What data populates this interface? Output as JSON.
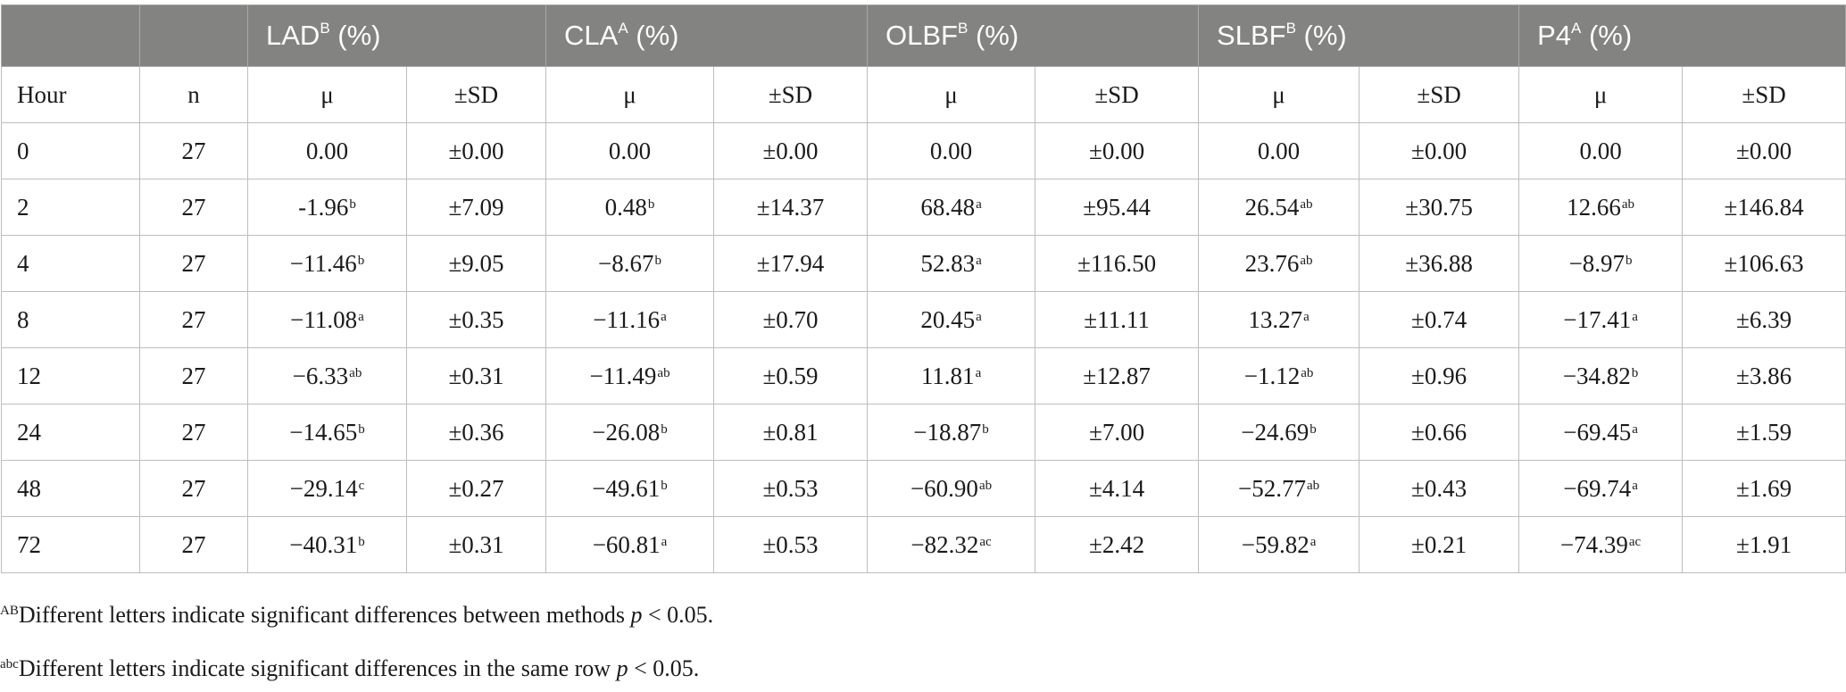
{
  "header": {
    "groups": [
      {
        "name": "LAD",
        "sup": "B",
        "unit": " (%)"
      },
      {
        "name": "CLA",
        "sup": "A",
        "unit": " (%)"
      },
      {
        "name": "OLBF",
        "sup": "B",
        "unit": " (%)"
      },
      {
        "name": "SLBF",
        "sup": "B",
        "unit": " (%)"
      },
      {
        "name": "P4",
        "sup": "A",
        "unit": " (%)"
      }
    ],
    "hour_label": "Hour",
    "n_label": "n",
    "mean_label": "μ",
    "sd_label": "±SD"
  },
  "rows": [
    {
      "hour": "0",
      "n": "27",
      "cells": [
        {
          "mean": "0.00",
          "sup": "",
          "sd": "±0.00"
        },
        {
          "mean": "0.00",
          "sup": "",
          "sd": "±0.00"
        },
        {
          "mean": "0.00",
          "sup": "",
          "sd": "±0.00"
        },
        {
          "mean": "0.00",
          "sup": "",
          "sd": "±0.00"
        },
        {
          "mean": "0.00",
          "sup": "",
          "sd": "±0.00"
        }
      ]
    },
    {
      "hour": "2",
      "n": "27",
      "cells": [
        {
          "mean": "-1.96",
          "sup": "b",
          "sd": "±7.09"
        },
        {
          "mean": "0.48",
          "sup": "b",
          "sd": "±14.37"
        },
        {
          "mean": "68.48",
          "sup": "a",
          "sd": "±95.44"
        },
        {
          "mean": "26.54",
          "sup": "ab",
          "sd": "±30.75"
        },
        {
          "mean": "12.66",
          "sup": "ab",
          "sd": "±146.84"
        }
      ]
    },
    {
      "hour": "4",
      "n": "27",
      "cells": [
        {
          "mean": "−11.46",
          "sup": "b",
          "sd": "±9.05"
        },
        {
          "mean": "−8.67",
          "sup": "b",
          "sd": "±17.94"
        },
        {
          "mean": "52.83",
          "sup": "a",
          "sd": "±116.50"
        },
        {
          "mean": "23.76",
          "sup": "ab",
          "sd": "±36.88"
        },
        {
          "mean": "−8.97",
          "sup": "b",
          "sd": "±106.63"
        }
      ]
    },
    {
      "hour": "8",
      "n": "27",
      "cells": [
        {
          "mean": "−11.08",
          "sup": "a",
          "sd": "±0.35"
        },
        {
          "mean": "−11.16",
          "sup": "a",
          "sd": "±0.70"
        },
        {
          "mean": "20.45",
          "sup": "a",
          "sd": "±11.11"
        },
        {
          "mean": "13.27",
          "sup": "a",
          "sd": "±0.74"
        },
        {
          "mean": "−17.41",
          "sup": "a",
          "sd": "±6.39"
        }
      ]
    },
    {
      "hour": "12",
      "n": "27",
      "cells": [
        {
          "mean": "−6.33",
          "sup": "ab",
          "sd": "±0.31"
        },
        {
          "mean": "−11.49",
          "sup": "ab",
          "sd": "±0.59"
        },
        {
          "mean": "11.81",
          "sup": "a",
          "sd": "±12.87"
        },
        {
          "mean": "−1.12",
          "sup": "ab",
          "sd": "±0.96"
        },
        {
          "mean": "−34.82",
          "sup": "b",
          "sd": "±3.86"
        }
      ]
    },
    {
      "hour": "24",
      "n": "27",
      "cells": [
        {
          "mean": "−14.65",
          "sup": "b",
          "sd": "±0.36"
        },
        {
          "mean": "−26.08",
          "sup": "b",
          "sd": "±0.81"
        },
        {
          "mean": "−18.87",
          "sup": "b",
          "sd": "±7.00"
        },
        {
          "mean": "−24.69",
          "sup": "b",
          "sd": "±0.66"
        },
        {
          "mean": "−69.45",
          "sup": "a",
          "sd": "±1.59"
        }
      ]
    },
    {
      "hour": "48",
      "n": "27",
      "cells": [
        {
          "mean": "−29.14",
          "sup": "c",
          "sd": "±0.27"
        },
        {
          "mean": "−49.61",
          "sup": "b",
          "sd": "±0.53"
        },
        {
          "mean": "−60.90",
          "sup": "ab",
          "sd": "±4.14"
        },
        {
          "mean": "−52.77",
          "sup": "ab",
          "sd": "±0.43"
        },
        {
          "mean": "−69.74",
          "sup": "a",
          "sd": "±1.69"
        }
      ]
    },
    {
      "hour": "72",
      "n": "27",
      "cells": [
        {
          "mean": "−40.31",
          "sup": "b",
          "sd": "±0.31"
        },
        {
          "mean": "−60.81",
          "sup": "a",
          "sd": "±0.53"
        },
        {
          "mean": "−82.32",
          "sup": "ac",
          "sd": "±2.42"
        },
        {
          "mean": "−59.82",
          "sup": "a",
          "sd": "±0.21"
        },
        {
          "mean": "−74.39",
          "sup": "ac",
          "sd": "±1.91"
        }
      ]
    }
  ],
  "footnotes": [
    {
      "sup": "AB",
      "text": "Different letters indicate significant differences between methods ",
      "p": "p",
      "tail": " < 0.05."
    },
    {
      "sup": "abc",
      "text": "Different letters indicate significant differences in the same row ",
      "p": "p",
      "tail": " < 0.05."
    }
  ],
  "colors": {
    "header_bg": "#838381",
    "header_text": "#ffffff",
    "border": "#bdbdbd"
  }
}
